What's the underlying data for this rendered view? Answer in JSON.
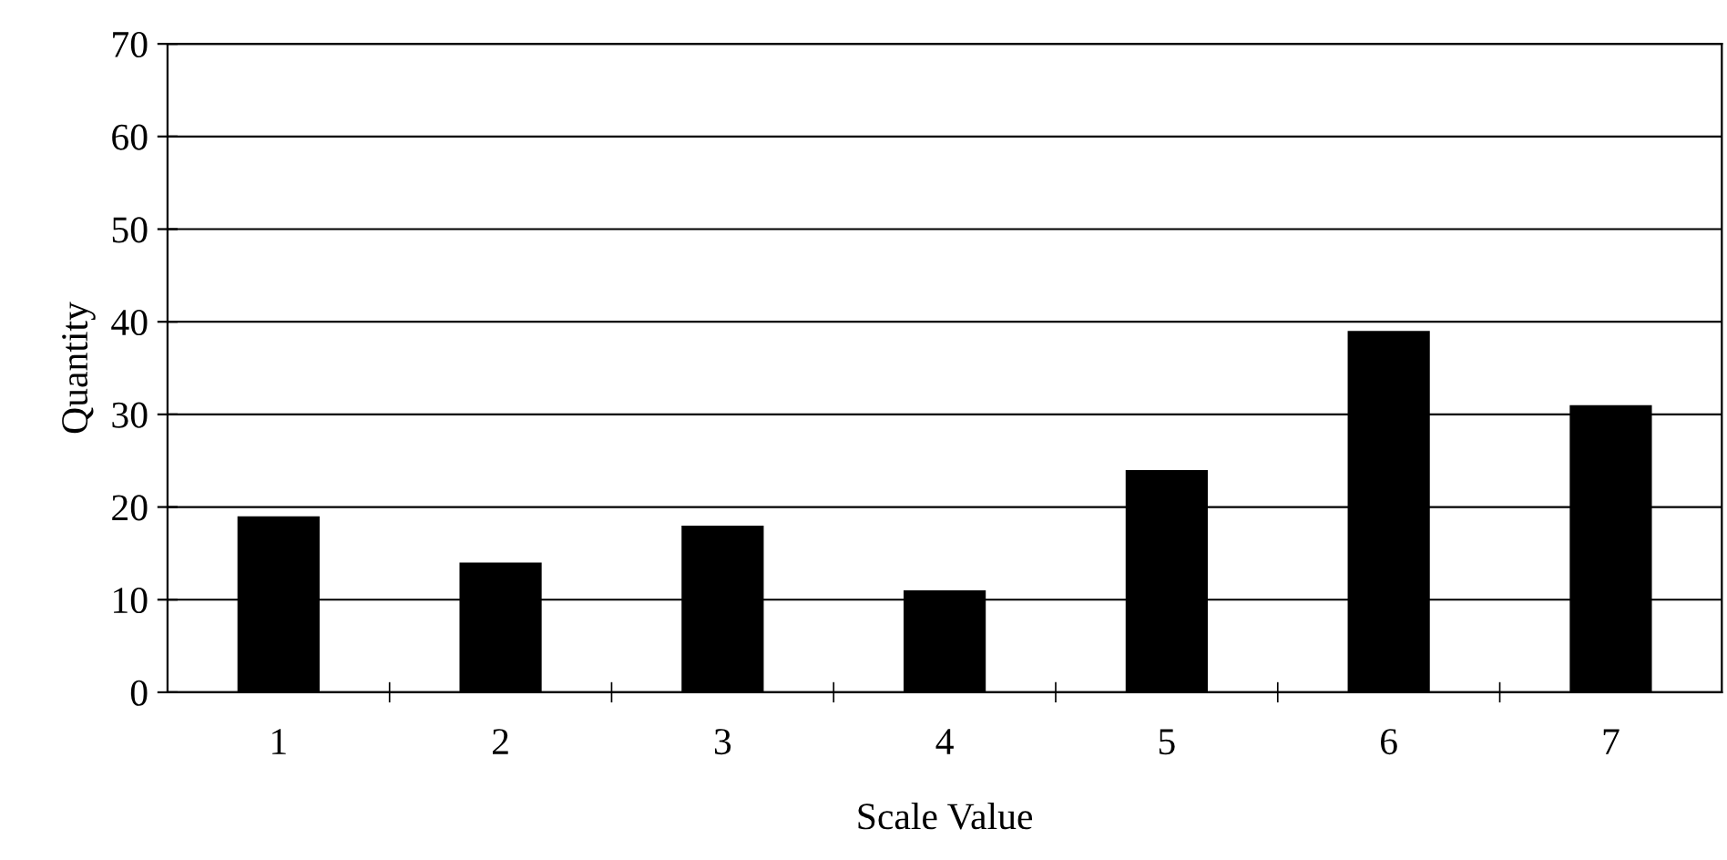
{
  "chart_data": {
    "type": "bar",
    "xlabel": "Scale Value",
    "ylabel": "Quantity",
    "categories": [
      "1",
      "2",
      "3",
      "4",
      "5",
      "6",
      "7"
    ],
    "values": [
      19,
      14,
      18,
      11,
      24,
      39,
      31
    ],
    "color": "#000000",
    "ylim": [
      0,
      70
    ],
    "yticks": [
      0,
      10,
      20,
      30,
      40,
      50,
      60,
      70
    ],
    "grid": "y",
    "legend": false
  }
}
